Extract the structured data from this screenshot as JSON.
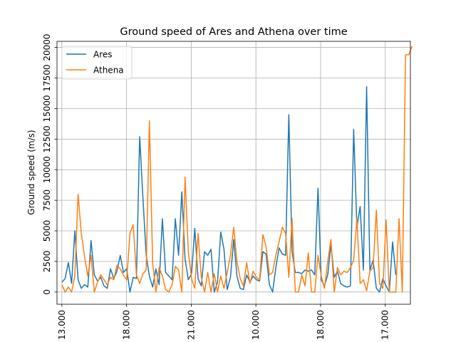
{
  "chart_data": {
    "type": "line",
    "title": "Ground speed of Ares and Athena over time",
    "xlabel": "",
    "ylabel": "Ground speed (m/s)",
    "grid": true,
    "legend_position": "top-left",
    "x_tick_labels": [
      "13.000",
      "18.000",
      "21.000",
      "10.000",
      "18.000",
      "17.000"
    ],
    "y_tick_labels": [
      "0",
      "2500",
      "5000",
      "7500",
      "10000",
      "12500",
      "15000",
      "17500",
      "20000"
    ],
    "x_range": [
      -1.5,
      107.5
    ],
    "y_range": [
      -1000,
      20500
    ],
    "series": [
      {
        "name": "Ares",
        "color": "#1f77b4",
        "values": [
          800,
          1100,
          2400,
          700,
          5000,
          1000,
          300,
          600,
          400,
          4200,
          1400,
          900,
          1200,
          500,
          300,
          1900,
          1100,
          1700,
          3000,
          1600,
          1900,
          0,
          1200,
          1100,
          12700,
          7700,
          3000,
          1300,
          400,
          1900,
          600,
          6000,
          1600,
          1300,
          1000,
          6000,
          3000,
          8200,
          2700,
          1000,
          1500,
          5200,
          1100,
          500,
          3300,
          3000,
          3500,
          0,
          800,
          4900,
          3500,
          200,
          1200,
          4300,
          1300,
          300,
          200,
          1400,
          800,
          1300,
          1000,
          900,
          3300,
          3100,
          600,
          0,
          2000,
          3600,
          3100,
          3000,
          14500,
          3300,
          1600,
          1600,
          1500,
          1800,
          1700,
          1800,
          1400,
          8500,
          1000,
          500,
          1400,
          3900,
          1200,
          1700,
          700,
          500,
          400,
          500,
          13300,
          5300,
          7000,
          1800,
          16800,
          1800,
          2600,
          300,
          0,
          1100,
          500,
          0,
          4100,
          1400
        ]
      },
      {
        "name": "Athena",
        "color": "#ff7f0e",
        "values": [
          600,
          0,
          400,
          0,
          1300,
          8000,
          4800,
          2900,
          1300,
          3000,
          0,
          800,
          1400,
          1000,
          600,
          1200,
          1000,
          2200,
          1900,
          1400,
          1000,
          4800,
          5500,
          1400,
          700,
          1500,
          1800,
          14000,
          2400,
          0,
          2000,
          1300,
          200,
          0,
          600,
          2100,
          1800,
          0,
          9400,
          3300,
          1100,
          300,
          4800,
          1200,
          0,
          1600,
          0,
          1500,
          0,
          1300,
          300,
          1600,
          3000,
          5300,
          2500,
          1100,
          500,
          2400,
          700,
          1700,
          1200,
          1000,
          4700,
          3700,
          1400,
          1600,
          3000,
          4100,
          5300,
          4800,
          1200,
          6000,
          0,
          0,
          1400,
          500,
          3200,
          0,
          0,
          3000,
          1300,
          300,
          2500,
          4300,
          0,
          2000,
          1400,
          1700,
          1600,
          2000,
          2600,
          6000,
          700,
          1000,
          100,
          1700,
          2000,
          6700,
          700,
          300,
          5900,
          0,
          0,
          0,
          6000,
          0,
          19400,
          19400,
          20100
        ]
      }
    ]
  }
}
